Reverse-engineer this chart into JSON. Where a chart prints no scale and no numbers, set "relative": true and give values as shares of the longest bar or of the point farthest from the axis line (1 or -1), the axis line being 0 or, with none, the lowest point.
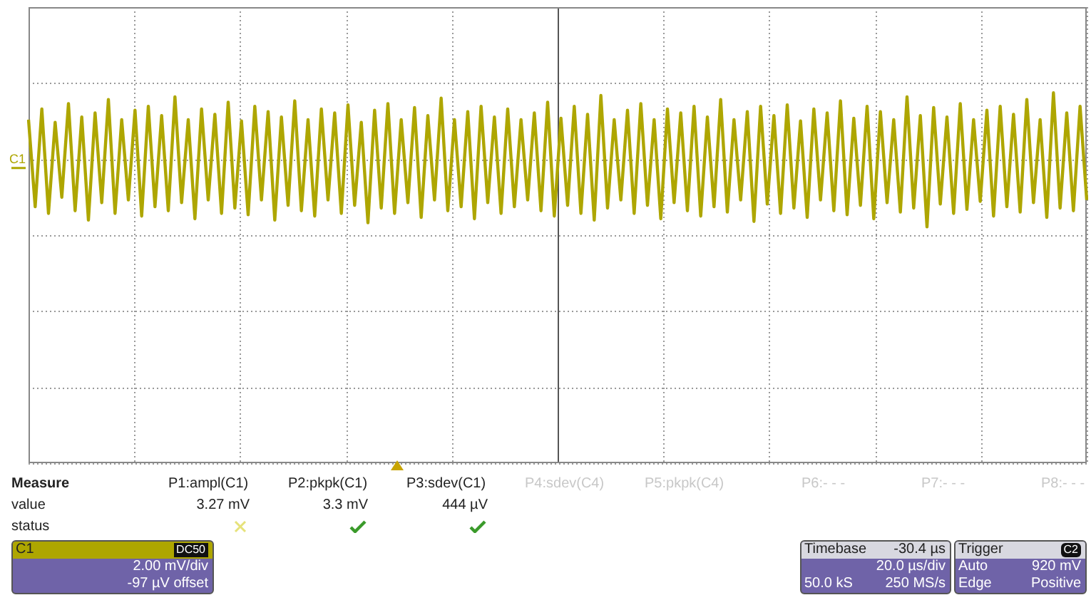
{
  "chart_data": {
    "type": "line",
    "relative": true,
    "grid": true,
    "legend": false,
    "marker": "none",
    "line_style": "solid",
    "categories": [
      null,
      null,
      null,
      null,
      null,
      null,
      null,
      null,
      null,
      null,
      null,
      null,
      null,
      null,
      null,
      null,
      null,
      null,
      null,
      null,
      null,
      null,
      null,
      null,
      null,
      null,
      null,
      null,
      null,
      null,
      null,
      null,
      null,
      null,
      null,
      null,
      null,
      null,
      null,
      null,
      null,
      null,
      null,
      null,
      null,
      null,
      null,
      null,
      null,
      null,
      null,
      null,
      null,
      null,
      null,
      null,
      null,
      null,
      null,
      null,
      null,
      null,
      null,
      null,
      null,
      null,
      null,
      null,
      null,
      null,
      null,
      null,
      null,
      null,
      null,
      null,
      null,
      null,
      null,
      null,
      null,
      null,
      null,
      null,
      null,
      null,
      null,
      null,
      null,
      null,
      null,
      null,
      null,
      null,
      null,
      null,
      null,
      null,
      null,
      null,
      null,
      null,
      null,
      null,
      null,
      null,
      null,
      null,
      null,
      null,
      null,
      null,
      null,
      null,
      null,
      null,
      null,
      null,
      null,
      null,
      null,
      null,
      null,
      null,
      null,
      null,
      null,
      null,
      null,
      null,
      null,
      null,
      null,
      null,
      null,
      null,
      null,
      null,
      null,
      null,
      null,
      null,
      null,
      null,
      null,
      null,
      null,
      null,
      null,
      null,
      null,
      null,
      null,
      null,
      null,
      null,
      null,
      null,
      null,
      null
    ],
    "series": [
      {
        "name": "C1",
        "color": "#aea600",
        "values": [
          0.6,
          -0.7,
          0.76,
          -0.8,
          0.56,
          -0.56,
          0.84,
          -0.76,
          0.64,
          -0.9,
          0.7,
          -0.64,
          0.9,
          -0.8,
          0.6,
          -0.6,
          0.74,
          -0.84,
          0.8,
          -0.7,
          0.66,
          -0.76,
          0.94,
          -0.64,
          0.6,
          -0.88,
          0.76,
          -0.6,
          0.68,
          -0.8,
          0.86,
          -0.72,
          0.58,
          -0.82,
          0.8,
          -0.6,
          0.72,
          -0.9,
          0.64,
          -0.68,
          0.88,
          -0.76,
          0.6,
          -0.84,
          0.76,
          -0.6,
          0.7,
          -0.8,
          0.82,
          -0.68,
          0.56,
          -0.94,
          0.74,
          -0.72,
          0.84,
          -0.8,
          0.6,
          -0.64,
          0.78,
          -0.86,
          0.66,
          -0.6,
          0.92,
          -0.76,
          0.6,
          -0.7,
          0.72,
          -0.88,
          0.8,
          -0.64,
          0.64,
          -0.8,
          0.76,
          -0.7,
          0.6,
          -0.6,
          0.7,
          -0.76,
          0.86,
          -0.84,
          0.62,
          -0.68,
          0.8,
          -0.8,
          0.68,
          -0.9,
          0.96,
          -0.72,
          0.6,
          -0.6,
          0.74,
          -0.8,
          0.84,
          -0.68,
          0.6,
          -0.88,
          0.76,
          -0.64,
          0.7,
          -0.76,
          0.8,
          -0.84,
          0.64,
          -0.7,
          0.9,
          -0.78,
          0.6,
          -0.6,
          0.72,
          -0.92,
          0.8,
          -0.66,
          0.66,
          -0.8,
          0.82,
          -0.72,
          0.58,
          -0.86,
          0.76,
          -0.6,
          0.7,
          -0.76,
          0.88,
          -0.82,
          0.62,
          -0.68,
          0.8,
          -0.88,
          0.72,
          -0.64,
          0.6,
          -0.78,
          0.94,
          -0.72,
          0.66,
          -1,
          0.78,
          -0.66,
          0.64,
          -0.8,
          0.84,
          -0.74,
          0.6,
          -0.62,
          0.74,
          -0.84,
          0.8,
          -0.7,
          0.68,
          -0.78,
          0.9,
          -0.64,
          0.6,
          -0.86,
          1,
          -0.72,
          0.7,
          -0.76,
          0.8,
          -0.6
        ]
      }
    ],
    "annotations": [
      "Measure",
      "P1:ampl(C1)",
      "P2:pkpk(C1)",
      "P3:sdev(C1)",
      "P4:sdev(C4)",
      "P5:pkpk(C4)",
      "P6:- - -",
      "P7:- - -",
      "P8:- - -",
      "value",
      "3.27 mV",
      "3.3 mV",
      "444 µV",
      "status",
      "C1",
      "DC50",
      "2.00 mV/div",
      "-97 µV offset",
      "Timebase",
      "-30.4 µs",
      "20.0 µs/div",
      "50.0 kS",
      "250 MS/s",
      "Trigger",
      "C2",
      "Auto",
      "920 mV",
      "Edge",
      "Positive"
    ]
  }
}
